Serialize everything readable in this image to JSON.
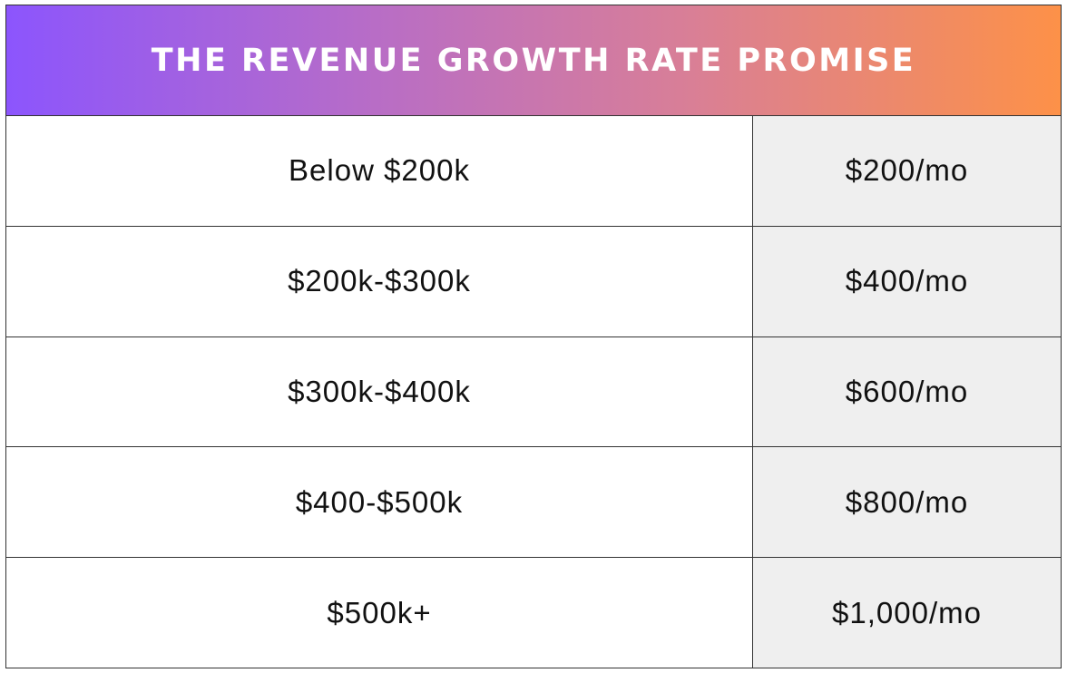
{
  "table": {
    "title": "THE REVENUE GROWTH RATE PROMISE",
    "gradient_start": "#8c55fd",
    "gradient_end": "#fd9148",
    "rows": [
      {
        "range": "Below $200k",
        "price": "$200/mo"
      },
      {
        "range": "$200k-$300k",
        "price": "$400/mo"
      },
      {
        "range": "$300k-$400k",
        "price": "$600/mo"
      },
      {
        "range": "$400-$500k",
        "price": "$800/mo"
      },
      {
        "range": "$500k+",
        "price": "$1,000/mo"
      }
    ]
  }
}
